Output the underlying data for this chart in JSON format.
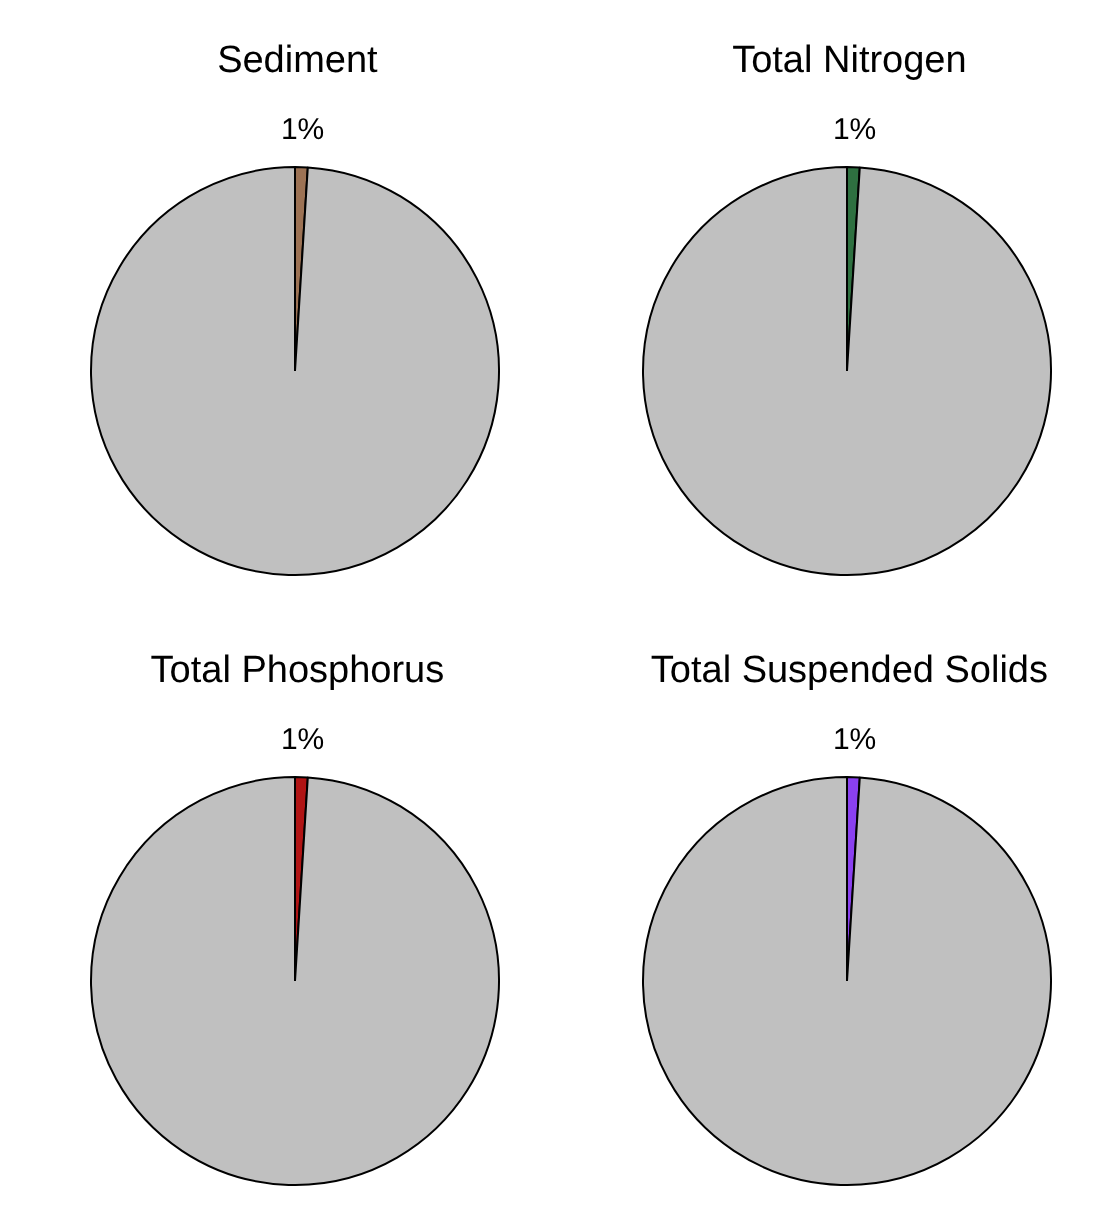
{
  "chart_data": [
    {
      "type": "pie",
      "title": "Sediment",
      "categories": [
        null,
        null
      ],
      "values": [
        1,
        99
      ],
      "colors": [
        "#9c7254",
        "#c0c0c0"
      ],
      "value_labels": [
        "1%",
        null
      ]
    },
    {
      "type": "pie",
      "title": "Total Nitrogen",
      "categories": [
        null,
        null
      ],
      "values": [
        1,
        99
      ],
      "colors": [
        "#2e7040",
        "#c0c0c0"
      ],
      "value_labels": [
        "1%",
        null
      ]
    },
    {
      "type": "pie",
      "title": "Total Phosphorus",
      "categories": [
        null,
        null
      ],
      "values": [
        1,
        99
      ],
      "colors": [
        "#b01414",
        "#c0c0c0"
      ],
      "value_labels": [
        "1%",
        null
      ]
    },
    {
      "type": "pie",
      "title": "Total Suspended Solids",
      "categories": [
        null,
        null
      ],
      "values": [
        1,
        99
      ],
      "colors": [
        "#8a40f0",
        "#c0c0c0"
      ],
      "value_labels": [
        "1%",
        null
      ]
    }
  ]
}
